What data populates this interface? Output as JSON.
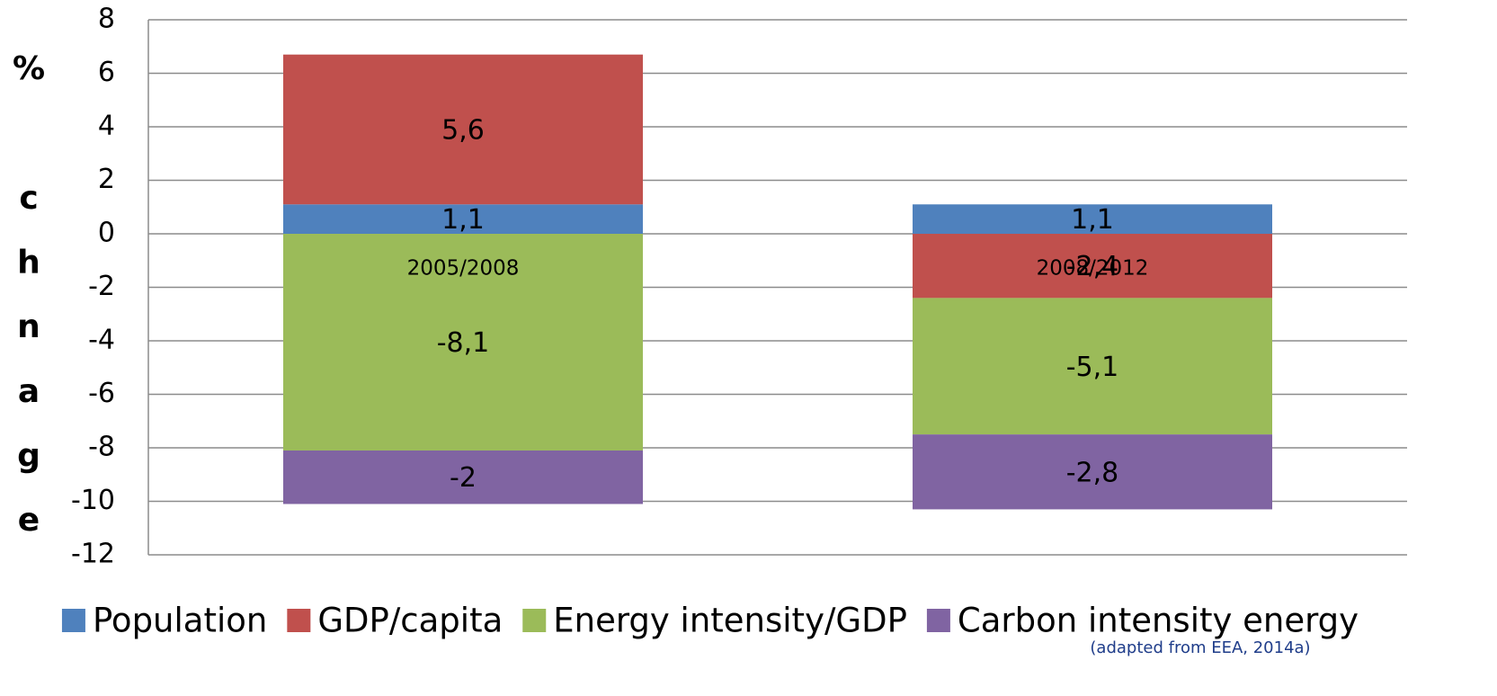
{
  "chart_data": {
    "type": "stacked_bar",
    "ylabel_letters": [
      "%",
      "c",
      "h",
      "n",
      "a",
      "g",
      "e"
    ],
    "categories": [
      "2005/2008",
      "2008/2012"
    ],
    "series": [
      {
        "name": "Population",
        "color": "#4f81bd",
        "values": [
          1.1,
          1.1
        ],
        "value_labels": [
          "1,1",
          "1,1"
        ]
      },
      {
        "name": "GDP/capita",
        "color": "#c0504d",
        "values": [
          5.6,
          -2.4
        ],
        "value_labels": [
          "5,6",
          "-2,4"
        ]
      },
      {
        "name": "Energy intensity/GDP",
        "color": "#9bbb59",
        "values": [
          -8.1,
          -5.1
        ],
        "value_labels": [
          "-8,1",
          "-5,1"
        ]
      },
      {
        "name": "Carbon intensity energy",
        "color": "#8064a2",
        "values": [
          -2,
          -2.8
        ],
        "value_labels": [
          "-2",
          "-2,8"
        ]
      }
    ],
    "ylim": [
      -12,
      8
    ],
    "yticks": [
      -12,
      -10,
      -8,
      -6,
      -4,
      -2,
      0,
      2,
      4,
      6,
      8
    ],
    "grid": true,
    "legend": "bottom",
    "source": "(adapted from EEA, 2014a)"
  }
}
